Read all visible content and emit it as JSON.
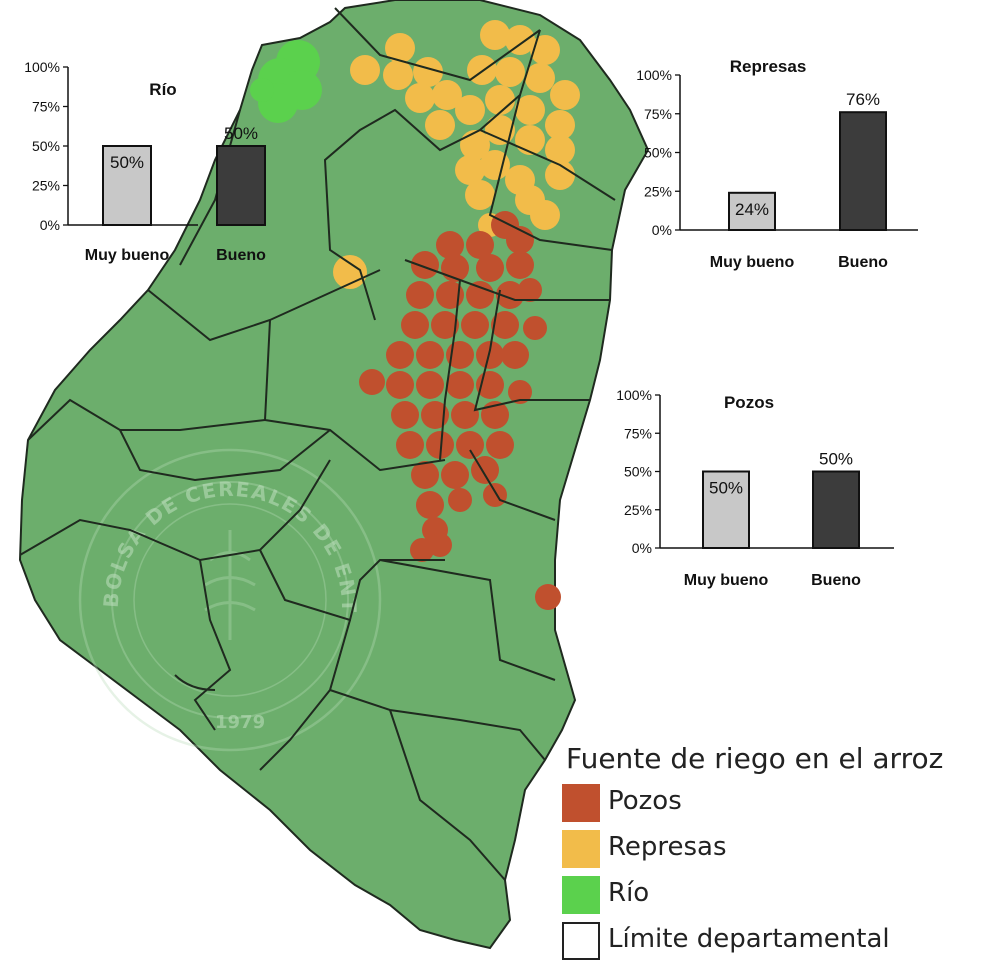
{
  "colors": {
    "land": "#6cae6c",
    "border": "#1f2a1f",
    "pozos": "#c0502e",
    "represas": "#f2bc4a",
    "rio": "#5bd14d",
    "bar_muy_bueno": "#c8c8c8",
    "bar_bueno": "#3c3c3c"
  },
  "watermark": {
    "text": "BOLSA DE CEREALES DE ENTRE RÍOS",
    "year": "1979"
  },
  "legend": {
    "title": "Fuente de riego en el arroz",
    "items": [
      {
        "label": "Pozos",
        "swatch": "pozos"
      },
      {
        "label": "Represas",
        "swatch": "represas"
      },
      {
        "label": "Río",
        "swatch": "rio"
      },
      {
        "label": "Límite departamental",
        "swatch": "border"
      }
    ]
  },
  "chart_data": [
    {
      "type": "bar",
      "title": "Río",
      "categories": [
        "Muy bueno",
        "Bueno"
      ],
      "values": [
        50,
        50
      ],
      "value_labels": [
        "50%",
        "50%"
      ],
      "y_ticks": [
        "100%",
        "75%",
        "50%",
        "25%",
        "0%"
      ],
      "ylim": [
        0,
        100
      ]
    },
    {
      "type": "bar",
      "title": "Represas",
      "categories": [
        "Muy bueno",
        "Bueno"
      ],
      "values": [
        24,
        76
      ],
      "value_labels": [
        "24%",
        "76%"
      ],
      "y_ticks": [
        "100%",
        "75%",
        "50%",
        "25%",
        "0%"
      ],
      "ylim": [
        0,
        100
      ]
    },
    {
      "type": "bar",
      "title": "Pozos",
      "categories": [
        "Muy bueno",
        "Bueno"
      ],
      "values": [
        50,
        50
      ],
      "value_labels": [
        "50%",
        "50%"
      ],
      "y_ticks": [
        "100%",
        "75%",
        "50%",
        "25%",
        "0%"
      ],
      "ylim": [
        0,
        100
      ]
    }
  ]
}
